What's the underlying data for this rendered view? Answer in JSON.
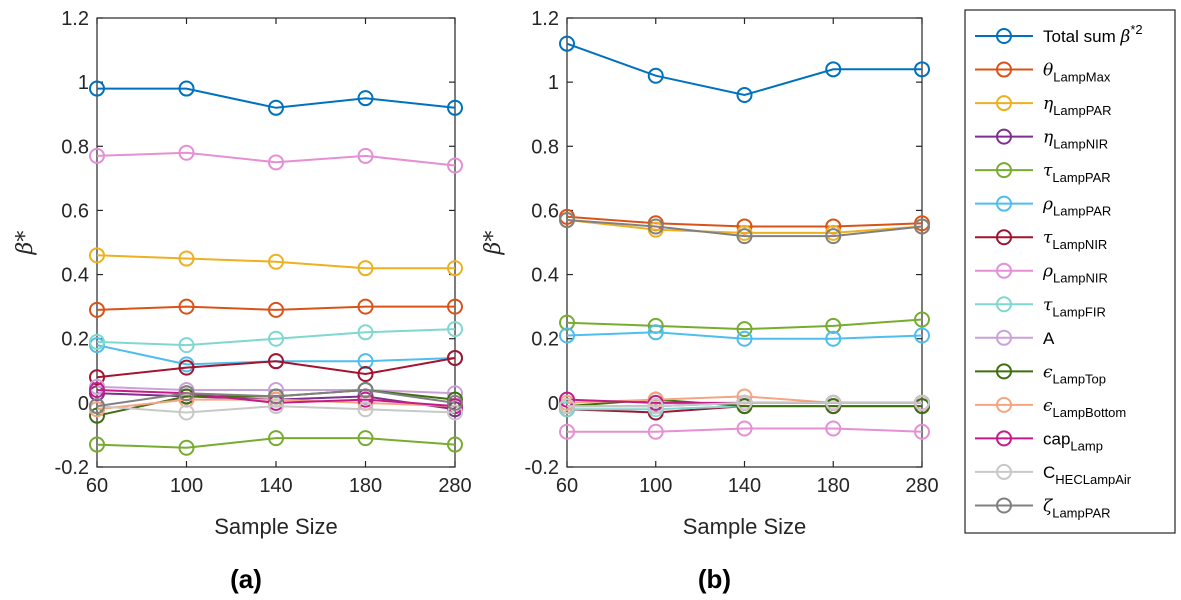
{
  "chart_data": [
    {
      "type": "line",
      "panel_label": "(a)",
      "xlabel": "Sample Size",
      "ylabel": "β*",
      "x": [
        60,
        100,
        140,
        180,
        280
      ],
      "xtick_labels": [
        "60",
        "100",
        "140",
        "180",
        "280"
      ],
      "ylim": [
        -0.2,
        1.2
      ],
      "yticks": [
        "-0.2",
        "0",
        "0.2",
        "0.4",
        "0.6",
        "0.8",
        "1",
        "1.2"
      ],
      "grid": false,
      "series": [
        {
          "name": "Total sum β*2",
          "color": "#0072BD",
          "values": [
            0.98,
            0.98,
            0.92,
            0.95,
            0.92
          ]
        },
        {
          "name": "θLampMax",
          "color": "#D95319",
          "values": [
            0.29,
            0.3,
            0.29,
            0.3,
            0.3
          ]
        },
        {
          "name": "ηLampPAR",
          "color": "#EDB120",
          "values": [
            0.46,
            0.45,
            0.44,
            0.42,
            0.42
          ]
        },
        {
          "name": "ηLampNIR",
          "color": "#7E2F8E",
          "values": [
            0.03,
            0.02,
            0.01,
            0.02,
            -0.02
          ]
        },
        {
          "name": "τLampPAR",
          "color": "#77AC30",
          "values": [
            -0.13,
            -0.14,
            -0.11,
            -0.11,
            -0.13
          ]
        },
        {
          "name": "ρLampPAR",
          "color": "#4DBEEE",
          "values": [
            0.18,
            0.12,
            0.13,
            0.13,
            0.14
          ]
        },
        {
          "name": "τLampNIR",
          "color": "#A2142F",
          "values": [
            0.08,
            0.11,
            0.13,
            0.09,
            0.14
          ]
        },
        {
          "name": "ρLampNIR",
          "color": "#E58FD4",
          "values": [
            0.77,
            0.78,
            0.75,
            0.77,
            0.74
          ]
        },
        {
          "name": "τLampFIR",
          "color": "#7FD8D0",
          "values": [
            0.19,
            0.18,
            0.2,
            0.22,
            0.23
          ]
        },
        {
          "name": "A",
          "color": "#C9A2D8",
          "values": [
            0.05,
            0.04,
            0.04,
            0.04,
            0.03
          ]
        },
        {
          "name": "ϵLampTop",
          "color": "#3F6E0F",
          "values": [
            -0.04,
            0.02,
            0.02,
            0.04,
            0.01
          ]
        },
        {
          "name": "ϵLampBottom",
          "color": "#F4A582",
          "values": [
            -0.02,
            0.01,
            0.01,
            0.0,
            -0.01
          ]
        },
        {
          "name": "capLamp",
          "color": "#C51B8A",
          "values": [
            0.04,
            0.03,
            0.0,
            0.01,
            -0.01
          ]
        },
        {
          "name": "CHECLampAir",
          "color": "#C8C8C8",
          "values": [
            -0.01,
            -0.03,
            -0.01,
            -0.02,
            -0.03
          ]
        },
        {
          "name": "ζLampPAR",
          "color": "#808080",
          "values": [
            -0.01,
            0.03,
            0.02,
            0.04,
            0.0
          ]
        }
      ]
    },
    {
      "type": "line",
      "panel_label": "(b)",
      "xlabel": "Sample Size",
      "ylabel": "β*",
      "x": [
        60,
        100,
        140,
        180,
        280
      ],
      "xtick_labels": [
        "60",
        "100",
        "140",
        "180",
        "280"
      ],
      "ylim": [
        -0.2,
        1.2
      ],
      "yticks": [
        "-0.2",
        "0",
        "0.2",
        "0.4",
        "0.6",
        "0.8",
        "1",
        "1.2"
      ],
      "grid": false,
      "series": [
        {
          "name": "Total sum β*2",
          "color": "#0072BD",
          "values": [
            1.12,
            1.02,
            0.96,
            1.04,
            1.04
          ]
        },
        {
          "name": "θLampMax",
          "color": "#D95319",
          "values": [
            0.58,
            0.56,
            0.55,
            0.55,
            0.56
          ]
        },
        {
          "name": "ηLampPAR",
          "color": "#EDB120",
          "values": [
            0.57,
            0.54,
            0.53,
            0.53,
            0.55
          ]
        },
        {
          "name": "ηLampNIR",
          "color": "#7E2F8E",
          "values": [
            -0.01,
            -0.01,
            0.0,
            0.0,
            0.0
          ]
        },
        {
          "name": "τLampPAR",
          "color": "#77AC30",
          "values": [
            0.25,
            0.24,
            0.23,
            0.24,
            0.26
          ]
        },
        {
          "name": "ρLampPAR",
          "color": "#4DBEEE",
          "values": [
            0.21,
            0.22,
            0.2,
            0.2,
            0.21
          ]
        },
        {
          "name": "τLampNIR",
          "color": "#A2142F",
          "values": [
            -0.02,
            -0.03,
            -0.01,
            -0.01,
            -0.01
          ]
        },
        {
          "name": "ρLampNIR",
          "color": "#E58FD4",
          "values": [
            -0.09,
            -0.09,
            -0.08,
            -0.08,
            -0.09
          ]
        },
        {
          "name": "τLampFIR",
          "color": "#7FD8D0",
          "values": [
            -0.02,
            -0.02,
            -0.01,
            -0.01,
            -0.01
          ]
        },
        {
          "name": "A",
          "color": "#C9A2D8",
          "values": [
            -0.01,
            -0.01,
            0.0,
            0.0,
            0.0
          ]
        },
        {
          "name": "ϵLampTop",
          "color": "#3F6E0F",
          "values": [
            -0.01,
            0.01,
            -0.01,
            -0.01,
            -0.01
          ]
        },
        {
          "name": "ϵLampBottom",
          "color": "#F4A582",
          "values": [
            0.0,
            0.01,
            0.02,
            0.0,
            0.0
          ]
        },
        {
          "name": "capLamp",
          "color": "#C51B8A",
          "values": [
            0.01,
            0.0,
            0.0,
            0.0,
            0.0
          ]
        },
        {
          "name": "CHECLampAir",
          "color": "#C8C8C8",
          "values": [
            -0.01,
            -0.01,
            0.0,
            0.0,
            0.0
          ]
        },
        {
          "name": "ζLampPAR",
          "color": "#808080",
          "values": [
            0.57,
            0.55,
            0.52,
            0.52,
            0.55
          ]
        }
      ]
    }
  ],
  "legend": {
    "placement": "right",
    "entries": [
      {
        "main": "Total sum ",
        "italic": "β",
        "sup": "*2",
        "color": "#0072BD"
      },
      {
        "italic": "θ",
        "sub": "LampMax",
        "color": "#D95319"
      },
      {
        "italic": "η",
        "sub": "LampPAR",
        "color": "#EDB120"
      },
      {
        "italic": "η",
        "sub": "LampNIR",
        "color": "#7E2F8E"
      },
      {
        "italic": "τ",
        "sub": "LampPAR",
        "color": "#77AC30"
      },
      {
        "italic": "ρ",
        "sub": "LampPAR",
        "color": "#4DBEEE"
      },
      {
        "italic": "τ",
        "sub": "LampNIR",
        "color": "#A2142F"
      },
      {
        "italic": "ρ",
        "sub": "LampNIR",
        "color": "#E58FD4"
      },
      {
        "italic": "τ",
        "sub": "LampFIR",
        "color": "#7FD8D0"
      },
      {
        "main": "A",
        "color": "#C9A2D8"
      },
      {
        "italic": "ϵ",
        "sub": "LampTop",
        "color": "#3F6E0F"
      },
      {
        "italic": "ϵ",
        "sub": "LampBottom",
        "color": "#F4A582"
      },
      {
        "main": "cap",
        "sub": "Lamp",
        "color": "#C51B8A"
      },
      {
        "main": "C",
        "sub": "HECLampAir",
        "color": "#C8C8C8"
      },
      {
        "italic": "ζ",
        "sub": "LampPAR",
        "color": "#808080"
      }
    ]
  }
}
